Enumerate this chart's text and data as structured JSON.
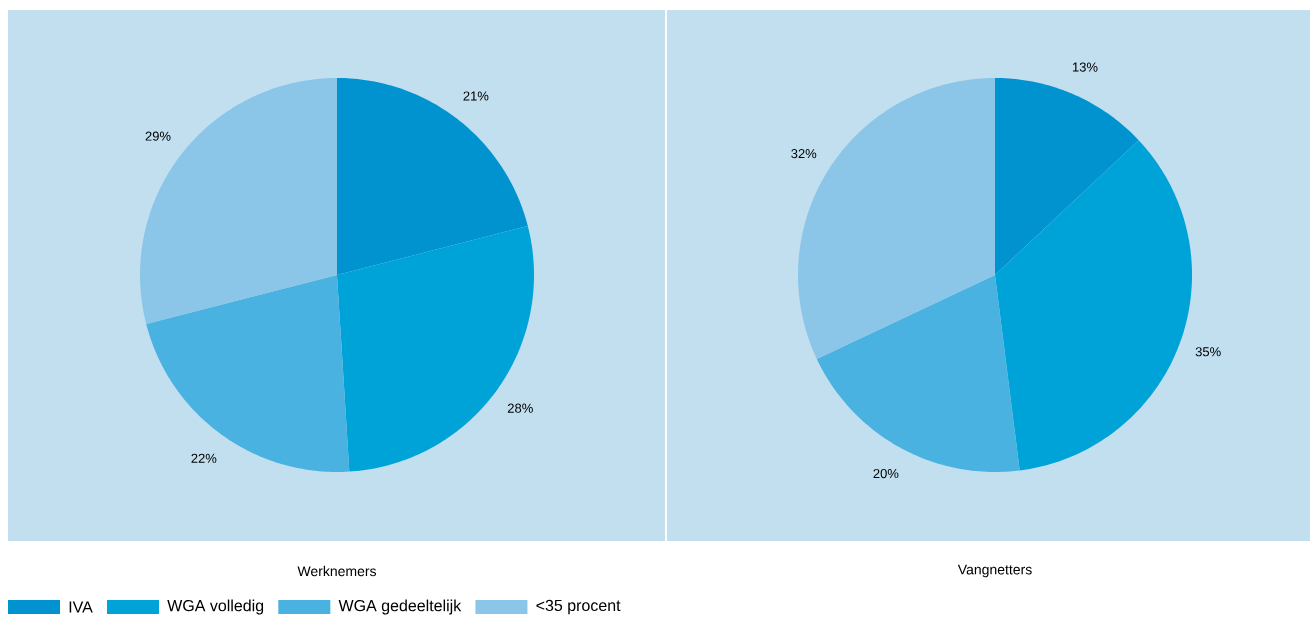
{
  "chart_data": [
    {
      "type": "pie",
      "title": "Werknemers",
      "categories": [
        "IVA",
        "WGA volledig",
        "WGA gedeeltelijk",
        "<35 procent"
      ],
      "values": [
        21,
        28,
        22,
        29
      ],
      "colors": [
        "#0093cf",
        "#00a3d8",
        "#49b2e0",
        "#8bc6e8"
      ],
      "value_labels": [
        "21%",
        "28%",
        "22%",
        "29%"
      ],
      "legend": "bottom"
    },
    {
      "type": "pie",
      "title": "Vangnetters",
      "categories": [
        null,
        null,
        null,
        null
      ],
      "values": [
        13,
        35,
        20,
        32
      ],
      "colors": [
        "#0093cf",
        "#00a3d8",
        "#49b2e0",
        "#8bc6e8"
      ],
      "value_labels": [
        "13%",
        "35%",
        "20%",
        "32%"
      ]
    }
  ]
}
